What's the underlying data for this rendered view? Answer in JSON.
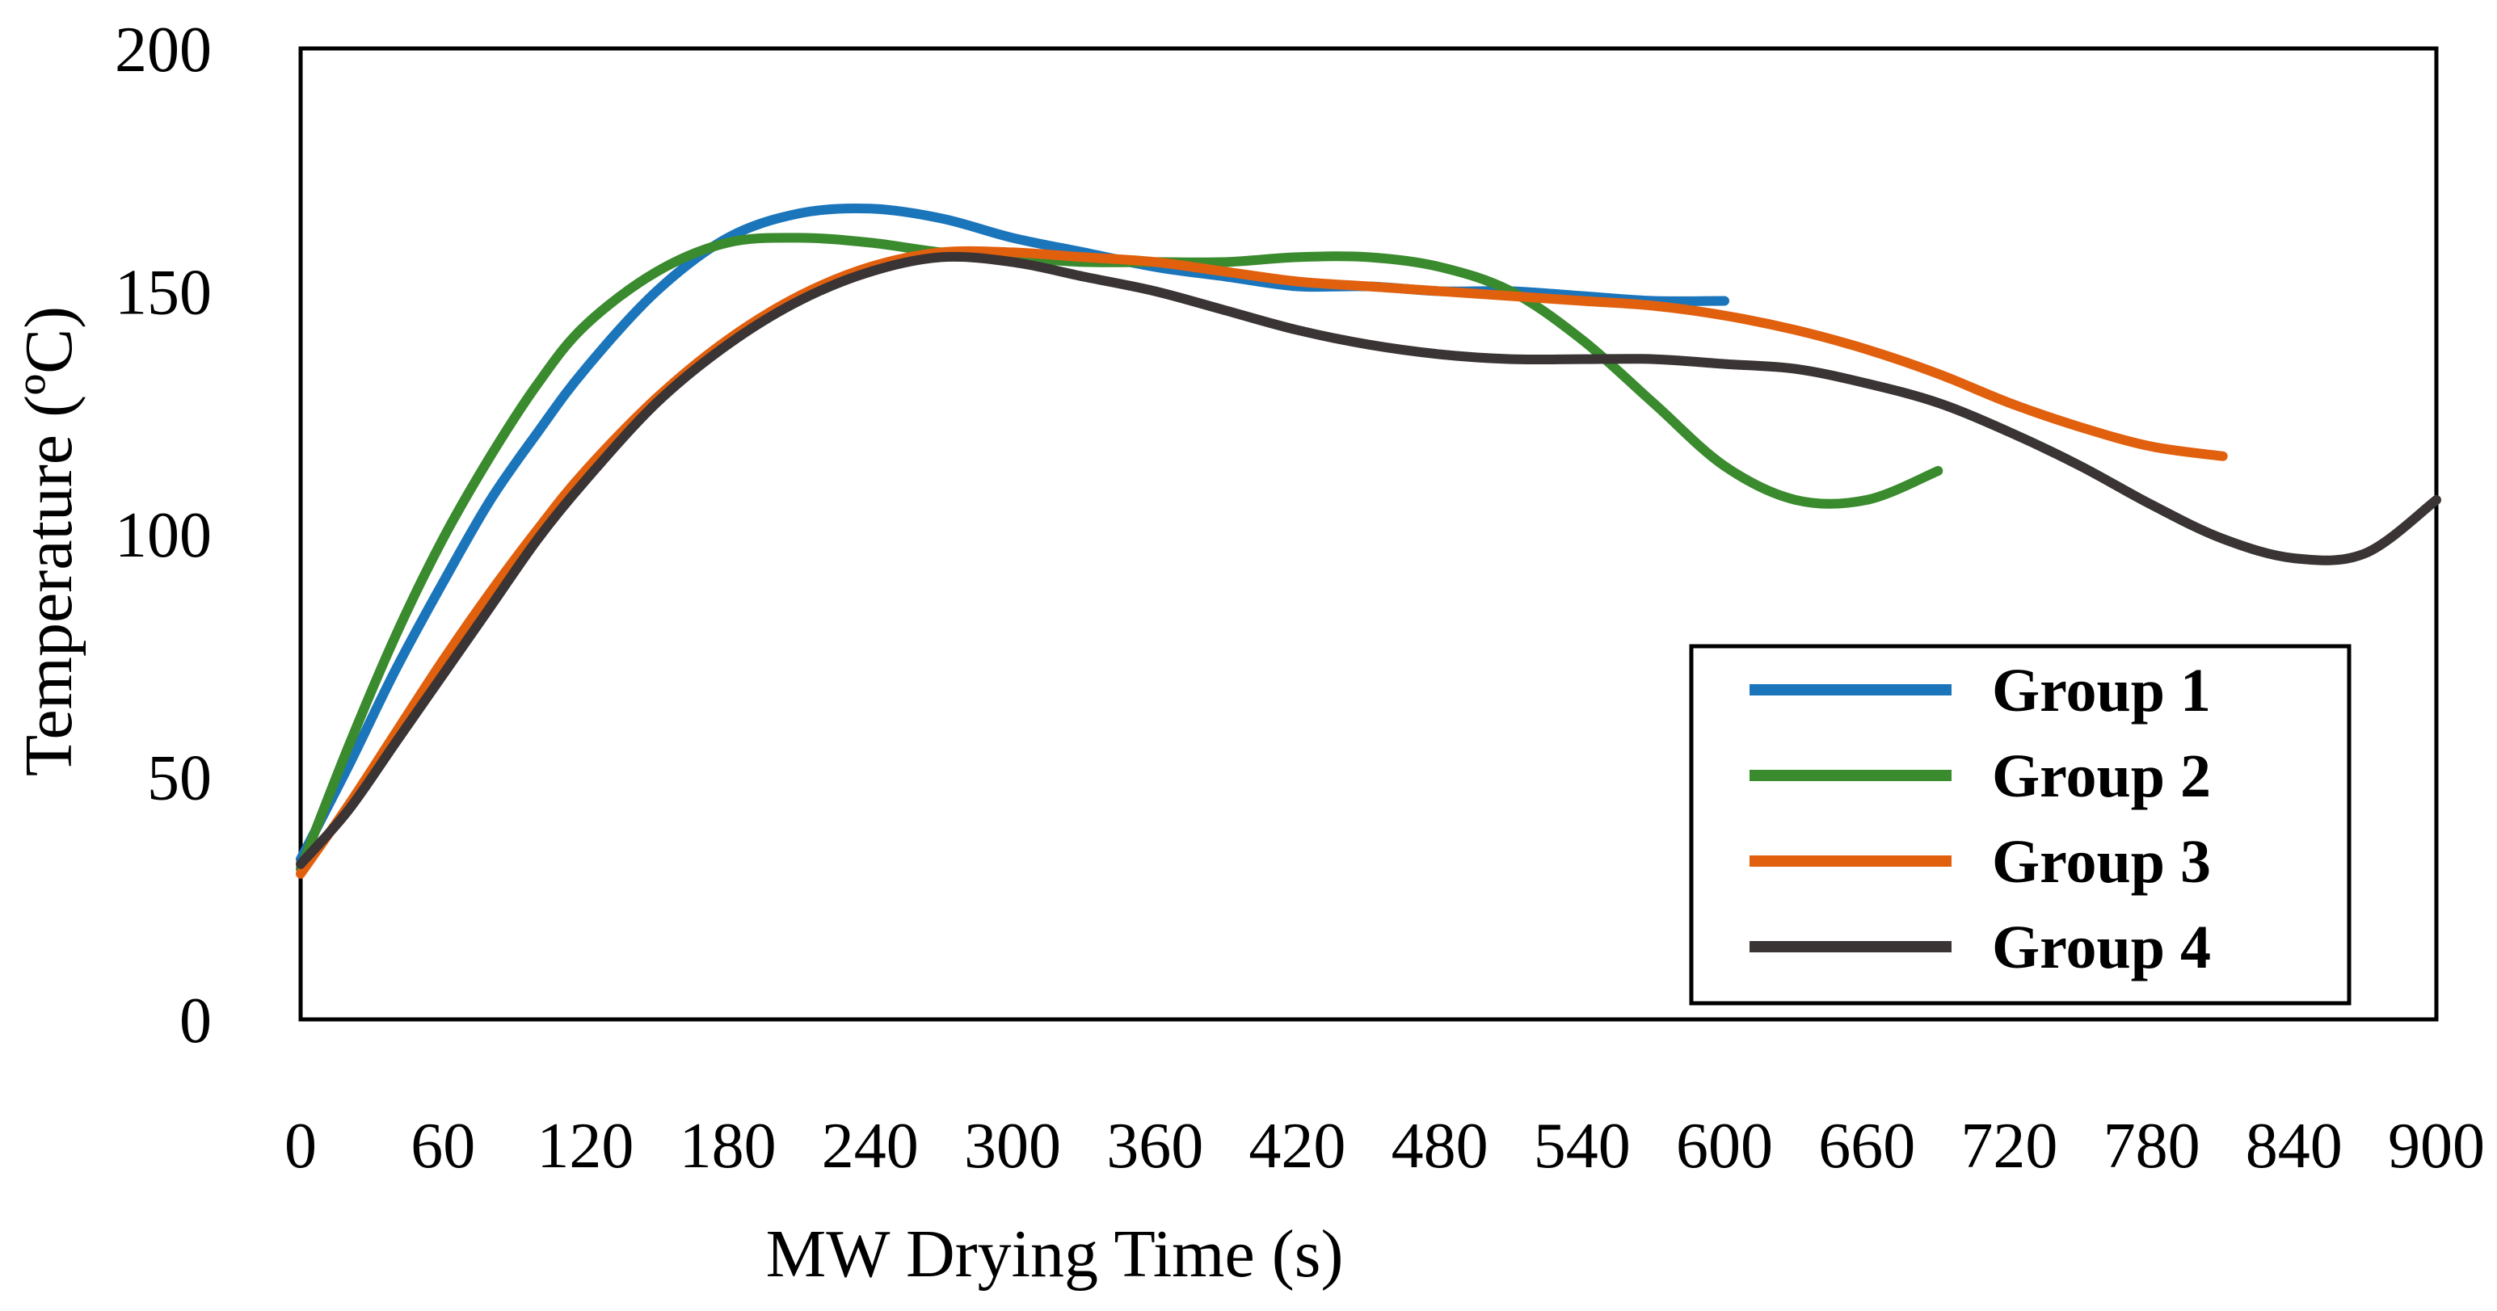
{
  "chart_data": {
    "type": "line",
    "title": "",
    "xlabel": "MW Drying Time (s)",
    "ylabel": "Temperature (ºC)",
    "xlim": [
      0,
      900
    ],
    "ylim": [
      0,
      200
    ],
    "xticks": [
      "0",
      "60",
      "120",
      "180",
      "240",
      "300",
      "360",
      "420",
      "480",
      "540",
      "600",
      "660",
      "720",
      "780",
      "840",
      "900"
    ],
    "yticks": [
      "0",
      "50",
      "100",
      "150",
      "200"
    ],
    "grid": false,
    "legend_position": "bottom-right",
    "series": [
      {
        "name": "Group 1",
        "color": "#1B75BB",
        "x": [
          0,
          20,
          40,
          60,
          80,
          100,
          120,
          150,
          180,
          210,
          240,
          270,
          300,
          330,
          360,
          390,
          420,
          450,
          480,
          510,
          540,
          570,
          600
        ],
        "y": [
          33,
          52,
          72,
          90,
          107,
          121,
          134,
          150,
          161,
          166,
          167,
          165,
          161,
          158,
          155,
          153,
          151,
          151,
          150,
          150,
          149,
          148,
          148
        ]
      },
      {
        "name": "Group 2",
        "color": "#3A8A2E",
        "x": [
          0,
          20,
          40,
          60,
          80,
          100,
          120,
          150,
          180,
          210,
          240,
          270,
          300,
          330,
          360,
          390,
          420,
          450,
          480,
          510,
          540,
          570,
          600,
          630,
          660,
          690
        ],
        "y": [
          31,
          56,
          79,
          99,
          116,
          131,
          143,
          154,
          160,
          161,
          160,
          158,
          157,
          156,
          156,
          156,
          157,
          157,
          155,
          150,
          140,
          127,
          114,
          107,
          107,
          113
        ]
      },
      {
        "name": "Group 3",
        "color": "#E1600E",
        "x": [
          0,
          20,
          40,
          60,
          80,
          100,
          120,
          150,
          180,
          210,
          240,
          270,
          300,
          330,
          360,
          390,
          420,
          450,
          480,
          510,
          540,
          570,
          600,
          630,
          660,
          690,
          720,
          750,
          780,
          810
        ],
        "y": [
          30,
          44,
          59,
          74,
          88,
          101,
          113,
          128,
          140,
          149,
          155,
          158,
          158,
          157,
          156,
          154,
          152,
          151,
          150,
          149,
          148,
          147,
          145,
          142,
          138,
          133,
          127,
          122,
          118,
          116
        ]
      },
      {
        "name": "Group 4",
        "color": "#3A3435",
        "x": [
          0,
          20,
          40,
          60,
          80,
          100,
          120,
          150,
          180,
          210,
          240,
          270,
          300,
          330,
          360,
          390,
          420,
          450,
          480,
          510,
          540,
          570,
          600,
          630,
          660,
          690,
          720,
          750,
          780,
          810,
          840,
          870,
          900
        ],
        "y": [
          32,
          43,
          57,
          71,
          85,
          99,
          111,
          127,
          139,
          148,
          154,
          157,
          156,
          153,
          150,
          146,
          142,
          139,
          137,
          136,
          136,
          136,
          135,
          134,
          131,
          127,
          121,
          114,
          106,
          99,
          95,
          96,
          107
        ]
      }
    ]
  }
}
